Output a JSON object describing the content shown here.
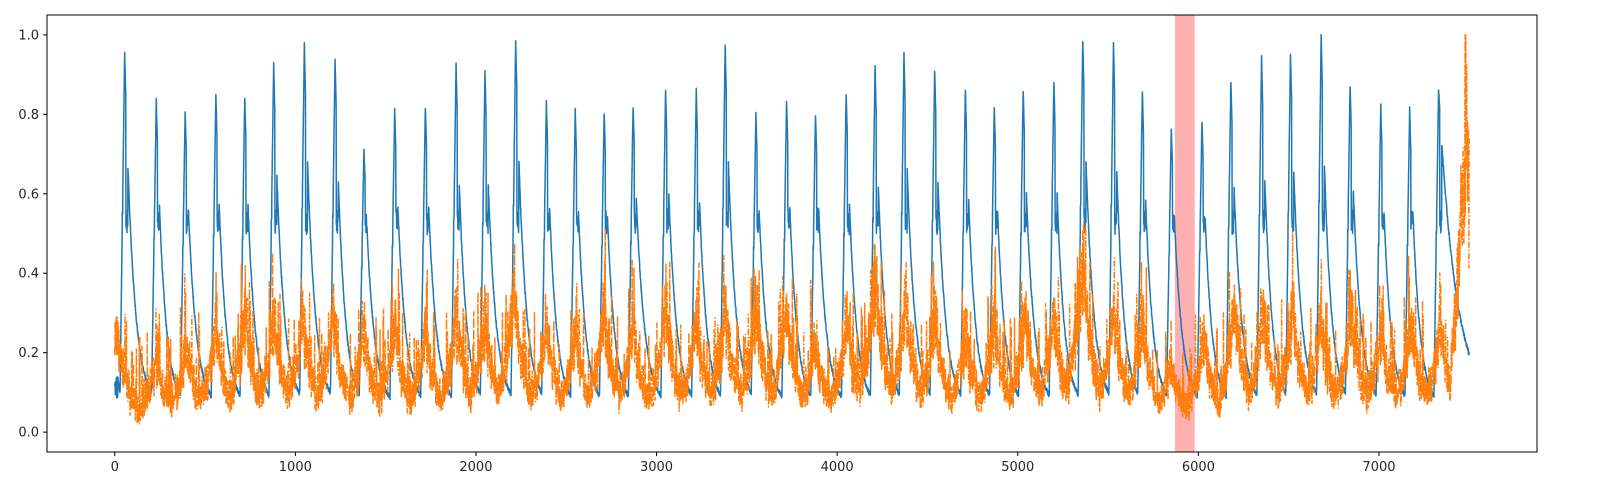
{
  "chart_data": {
    "type": "line",
    "title": "",
    "xlabel": "",
    "ylabel": "",
    "xlim": [
      -375,
      7875
    ],
    "ylim": [
      -0.05,
      1.05
    ],
    "xticks": [
      0,
      1000,
      2000,
      3000,
      4000,
      5000,
      6000,
      7000
    ],
    "yticks": [
      0.0,
      0.2,
      0.4,
      0.6,
      0.8,
      1.0
    ],
    "xtick_labels": [
      "0",
      "1000",
      "2000",
      "3000",
      "4000",
      "5000",
      "6000",
      "7000"
    ],
    "ytick_labels": [
      "0.0",
      "0.2",
      "0.4",
      "0.6",
      "0.8",
      "1.0"
    ],
    "grid": false,
    "highlight_region": {
      "x0": 5870,
      "x1": 5980,
      "color": "#ff9c9c"
    },
    "series": [
      {
        "color": "#1f77b4",
        "style": "solid",
        "n": 7500,
        "cycle_peaks": [
          [
            55,
            0.955
          ],
          [
            230,
            0.835
          ],
          [
            390,
            0.805
          ],
          [
            560,
            0.85
          ],
          [
            720,
            0.845
          ],
          [
            880,
            0.925
          ],
          [
            1050,
            0.975
          ],
          [
            1220,
            0.94
          ],
          [
            1380,
            0.715
          ],
          [
            1550,
            0.81
          ],
          [
            1720,
            0.82
          ],
          [
            1890,
            0.925
          ],
          [
            2050,
            0.905
          ],
          [
            2220,
            0.985
          ],
          [
            2390,
            0.83
          ],
          [
            2550,
            0.81
          ],
          [
            2710,
            0.805
          ],
          [
            2870,
            0.82
          ],
          [
            3050,
            0.86
          ],
          [
            3220,
            0.86
          ],
          [
            3380,
            0.975
          ],
          [
            3550,
            0.8
          ],
          [
            3720,
            0.835
          ],
          [
            3880,
            0.8
          ],
          [
            4050,
            0.855
          ],
          [
            4210,
            0.92
          ],
          [
            4370,
            0.95
          ],
          [
            4540,
            0.91
          ],
          [
            4710,
            0.865
          ],
          [
            4870,
            0.82
          ],
          [
            5030,
            0.86
          ],
          [
            5200,
            0.885
          ],
          [
            5360,
            0.985
          ],
          [
            5530,
            0.98
          ],
          [
            5690,
            0.86
          ],
          [
            5850,
            0.765
          ],
          [
            6020,
            0.785
          ],
          [
            6180,
            0.885
          ],
          [
            6350,
            0.945
          ],
          [
            6510,
            0.95
          ],
          [
            6680,
            1.0
          ],
          [
            6840,
            0.875
          ],
          [
            7010,
            0.82
          ],
          [
            7170,
            0.815
          ],
          [
            7330,
            0.865
          ]
        ]
      },
      {
        "color": "#ff7f0e",
        "style": "dashdot",
        "n": 7500,
        "cycle_peaks": [
          [
            10,
            0.29
          ],
          [
            230,
            0.19
          ],
          [
            400,
            0.22
          ],
          [
            560,
            0.3
          ],
          [
            720,
            0.33
          ],
          [
            880,
            0.32
          ],
          [
            1040,
            0.34
          ],
          [
            1210,
            0.34
          ],
          [
            1380,
            0.28
          ],
          [
            1550,
            0.3
          ],
          [
            1720,
            0.28
          ],
          [
            1890,
            0.33
          ],
          [
            2050,
            0.32
          ],
          [
            2210,
            0.41
          ],
          [
            2390,
            0.3
          ],
          [
            2550,
            0.29
          ],
          [
            2710,
            0.37
          ],
          [
            2870,
            0.31
          ],
          [
            3050,
            0.37
          ],
          [
            3220,
            0.31
          ],
          [
            3380,
            0.34
          ],
          [
            3550,
            0.37
          ],
          [
            3720,
            0.35
          ],
          [
            3880,
            0.25
          ],
          [
            4050,
            0.32
          ],
          [
            4210,
            0.47
          ],
          [
            4380,
            0.38
          ],
          [
            4540,
            0.33
          ],
          [
            4710,
            0.27
          ],
          [
            4870,
            0.3
          ],
          [
            5040,
            0.34
          ],
          [
            5200,
            0.34
          ],
          [
            5360,
            0.51
          ],
          [
            5530,
            0.35
          ],
          [
            5690,
            0.31
          ],
          [
            5850,
            0.18
          ],
          [
            6030,
            0.27
          ],
          [
            6200,
            0.37
          ],
          [
            6360,
            0.36
          ],
          [
            6520,
            0.35
          ],
          [
            6680,
            0.3
          ],
          [
            6850,
            0.35
          ],
          [
            7010,
            0.29
          ],
          [
            7180,
            0.3
          ],
          [
            7340,
            0.31
          ],
          [
            7480,
            1.0
          ]
        ]
      }
    ]
  }
}
